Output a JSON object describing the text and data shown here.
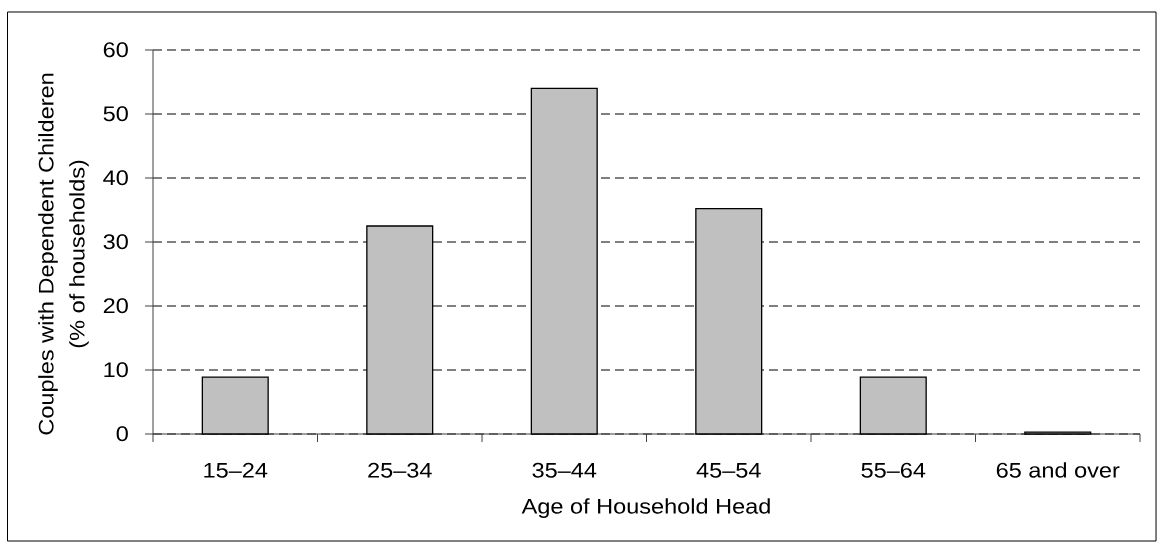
{
  "chart_data": {
    "type": "bar",
    "xlabel": "Age of Household Head",
    "ylabel": "Couples with Dependent Childeren (% of households)",
    "categories": [
      "15–24",
      "25–34",
      "35–44",
      "45–54",
      "55–64",
      "65 and over"
    ],
    "values": [
      8.9,
      32.5,
      54.0,
      35.2,
      8.9,
      0.3
    ],
    "color": "#c0c0c0",
    "ylim": [
      0,
      60
    ],
    "yticks": [
      0,
      10,
      20,
      30,
      40,
      50,
      60
    ],
    "grid": "y"
  }
}
